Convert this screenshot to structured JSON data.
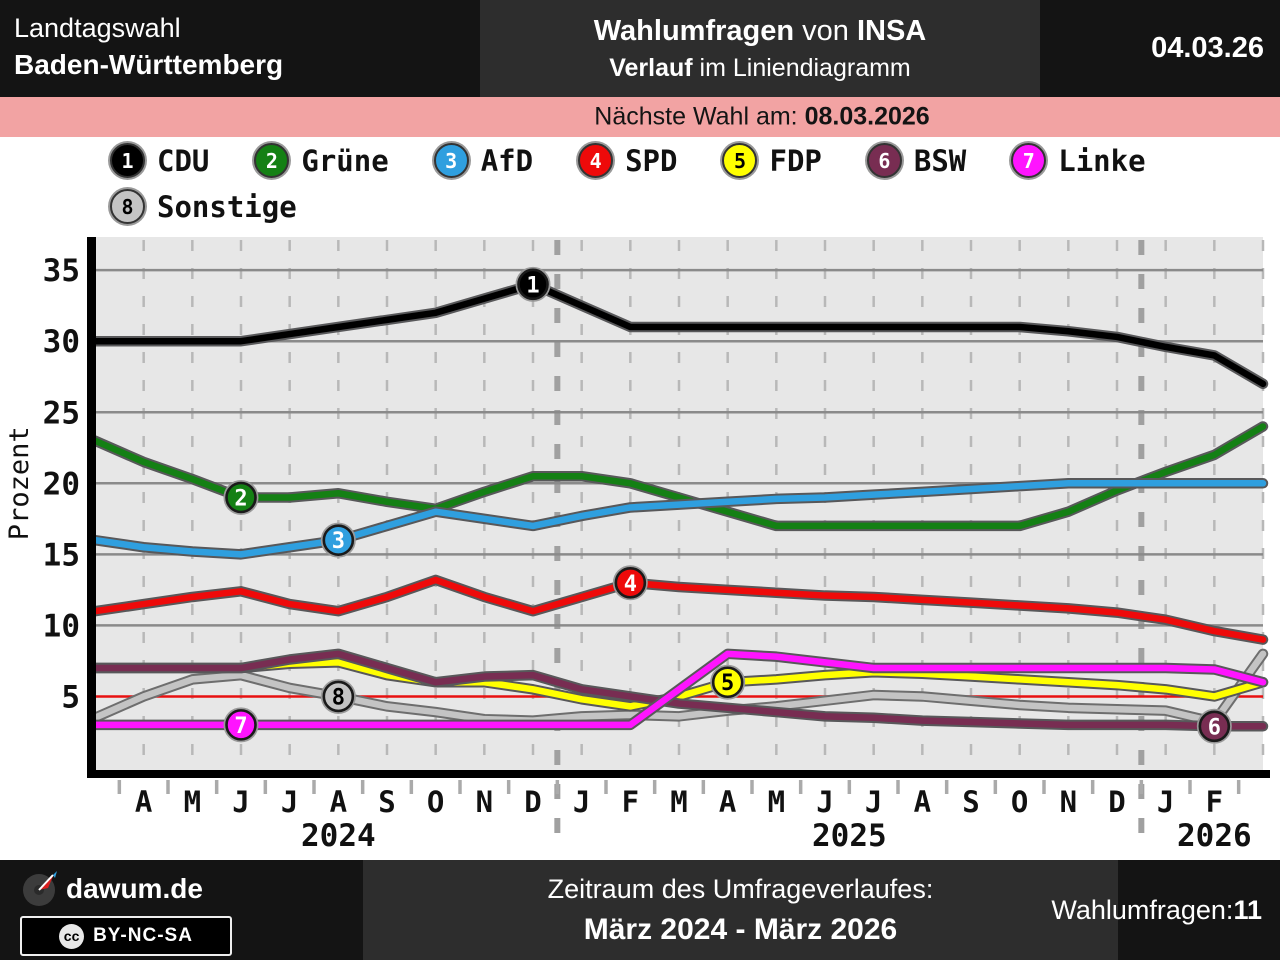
{
  "header": {
    "region_line1": "Landtagswahl",
    "region_line2": "Baden-Württemberg",
    "title_bold": "Wahlumfragen",
    "title_mid": " von ",
    "title_inst": "INSA",
    "subtitle_bold": "Verlauf",
    "subtitle_rest": " im Liniendiagramm",
    "date": "04.03.26"
  },
  "banner": {
    "label": "Nächste Wahl am: ",
    "date": "08.03.2026"
  },
  "legend": {
    "rows": [
      [
        0,
        1,
        2,
        3,
        4,
        5,
        6
      ],
      [
        7
      ]
    ]
  },
  "chart_data": {
    "type": "line",
    "ylabel": "Prozent",
    "ylim": [
      0,
      37.5
    ],
    "yticks": [
      5,
      10,
      15,
      20,
      25,
      30,
      35
    ],
    "threshold": {
      "value": 5,
      "color": "#e81010"
    },
    "grid": true,
    "plot_bg": "#e7e7e7",
    "x_months": [
      "M 2024",
      "A",
      "M",
      "J",
      "J",
      "A",
      "S",
      "O",
      "N",
      "D",
      "J 2025",
      "F",
      "M",
      "A",
      "M",
      "J",
      "J",
      "A",
      "S",
      "O",
      "N",
      "D",
      "J 2026",
      "F",
      "M 2026"
    ],
    "month_labels": [
      "",
      "A",
      "M",
      "J",
      "J",
      "A",
      "S",
      "O",
      "N",
      "D",
      "J",
      "F",
      "M",
      "A",
      "M",
      "J",
      "J",
      "A",
      "S",
      "O",
      "N",
      "D",
      "J",
      "F",
      ""
    ],
    "year_labels": [
      {
        "text": "2024",
        "x_index": 5
      },
      {
        "text": "2025",
        "x_index": 15.5
      },
      {
        "text": "2026",
        "x_index": 23
      }
    ],
    "year_separators": [
      9.5,
      21.5
    ],
    "series": [
      {
        "number": "1",
        "name": "CDU",
        "slug": "cdu",
        "color": "#000000",
        "num_color": "#ffffff",
        "z": 7,
        "marker_index": 9,
        "values": [
          30,
          30,
          30,
          30,
          30.5,
          31,
          31.5,
          32,
          33,
          34,
          32.5,
          31,
          31,
          31,
          31,
          31,
          31,
          31,
          31,
          31,
          30.7,
          30.3,
          29.6,
          29,
          27
        ]
      },
      {
        "number": "2",
        "name": "Grüne",
        "slug": "gruene",
        "color": "#148014",
        "num_color": "#ffffff",
        "z": 5,
        "marker_index": 3,
        "values": [
          23,
          21.5,
          20.3,
          19,
          19,
          19.3,
          18.7,
          18.2,
          19.4,
          20.5,
          20.5,
          20,
          19,
          18,
          17,
          17,
          17,
          17,
          17,
          17,
          18,
          19.5,
          20.8,
          22,
          24
        ]
      },
      {
        "number": "3",
        "name": "AfD",
        "slug": "afd",
        "color": "#2f9fdf",
        "num_color": "#ffffff",
        "z": 6,
        "marker_index": 5,
        "values": [
          16,
          15.5,
          15.2,
          15,
          15.5,
          16,
          17,
          18,
          17.5,
          17,
          17.7,
          18.3,
          18.5,
          18.7,
          18.9,
          19,
          19.2,
          19.4,
          19.6,
          19.8,
          20,
          20,
          20,
          20,
          20
        ]
      },
      {
        "number": "4",
        "name": "SPD",
        "slug": "spd",
        "color": "#ee0a0a",
        "num_color": "#ffffff",
        "z": 4,
        "marker_index": 11,
        "values": [
          11,
          11.5,
          12,
          12.4,
          11.5,
          11,
          12,
          13.2,
          12,
          11,
          12,
          13,
          12.7,
          12.5,
          12.3,
          12.1,
          12,
          11.8,
          11.6,
          11.4,
          11.2,
          10.9,
          10.4,
          9.6,
          9
        ]
      },
      {
        "number": "5",
        "name": "FDP",
        "slug": "fdp",
        "color": "#ffff00",
        "num_color": "#000000",
        "z": 1,
        "marker_index": 13,
        "values": [
          7,
          7,
          7,
          7,
          7.3,
          7.4,
          6.5,
          6,
          6,
          5.5,
          4.8,
          4.3,
          5,
          6,
          6.2,
          6.5,
          6.7,
          6.6,
          6.4,
          6.2,
          6,
          5.8,
          5.5,
          5,
          6
        ]
      },
      {
        "number": "6",
        "name": "BSW",
        "slug": "bsw",
        "color": "#782d52",
        "num_color": "#ffffff",
        "z": 2,
        "marker_index": 23,
        "values": [
          7,
          7,
          7,
          7,
          7.6,
          8,
          7,
          6,
          6.4,
          6.5,
          5.5,
          5,
          4.5,
          4.2,
          3.9,
          3.6,
          3.5,
          3.3,
          3.2,
          3.1,
          3,
          3,
          3,
          2.9,
          2.9
        ]
      },
      {
        "number": "7",
        "name": "Linke",
        "slug": "linke",
        "color": "#ff14ff",
        "num_color": "#ffffff",
        "z": 3,
        "marker_index": 3,
        "values": [
          3,
          3,
          3,
          3,
          3,
          3,
          3,
          3,
          3,
          3,
          3,
          3,
          5.5,
          8,
          7.8,
          7.4,
          7,
          7,
          7,
          7,
          7,
          7,
          7,
          6.9,
          6
        ]
      },
      {
        "number": "8",
        "name": "Sonstige",
        "slug": "sonstige",
        "color": "#c4c4c4",
        "num_color": "#000000",
        "z": 0,
        "marker_index": 5,
        "outline": "#6e6e6e",
        "values": [
          3.5,
          5,
          6.2,
          6.5,
          5.6,
          5,
          4.3,
          3.9,
          3.4,
          3.3,
          3.6,
          3.7,
          3.6,
          4,
          4.3,
          4.7,
          5.1,
          5,
          4.7,
          4.4,
          4.2,
          4.1,
          4,
          3.2,
          8
        ]
      }
    ]
  },
  "footer": {
    "brand": "dawum.de",
    "cc_glyph": "cc",
    "license": "BY-NC-SA",
    "center_line1": "Zeitraum des Umfrageverlaufes:",
    "center_line2": "März 2024 - März 2026",
    "right_label": "Wahlumfragen: ",
    "right_value": "11"
  }
}
